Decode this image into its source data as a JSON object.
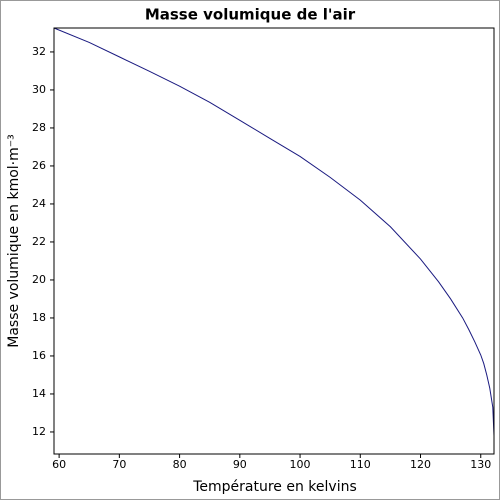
{
  "chart_data": {
    "type": "line",
    "title": "Masse volumique de l'air",
    "xlabel": "Température en kelvins",
    "ylabel": "Masse volumique en kmol·m⁻³",
    "x": [
      59.15,
      65,
      70,
      75,
      80,
      85,
      90,
      95,
      100,
      105,
      110,
      115,
      120,
      123,
      125,
      127,
      128,
      129,
      130,
      130.5,
      131,
      131.5,
      132,
      132.2
    ],
    "series": [
      {
        "name": "Masse volumique",
        "color": "#1a1a80",
        "values": [
          33.26,
          32.5,
          31.74,
          30.98,
          30.2,
          29.35,
          28.4,
          27.45,
          26.5,
          25.4,
          24.2,
          22.8,
          21.1,
          19.9,
          19.0,
          18.0,
          17.4,
          16.75,
          16.05,
          15.6,
          15.0,
          14.3,
          13.3,
          11.8
        ]
      }
    ],
    "xlim": [
      59.15,
      132.2
    ],
    "ylim": [
      10.84,
      33.26
    ],
    "xticks": [
      60,
      70,
      80,
      90,
      100,
      110,
      120,
      130
    ],
    "yticks": [
      12,
      14,
      16,
      18,
      20,
      22,
      24,
      26,
      28,
      30,
      32
    ],
    "grid": false
  }
}
